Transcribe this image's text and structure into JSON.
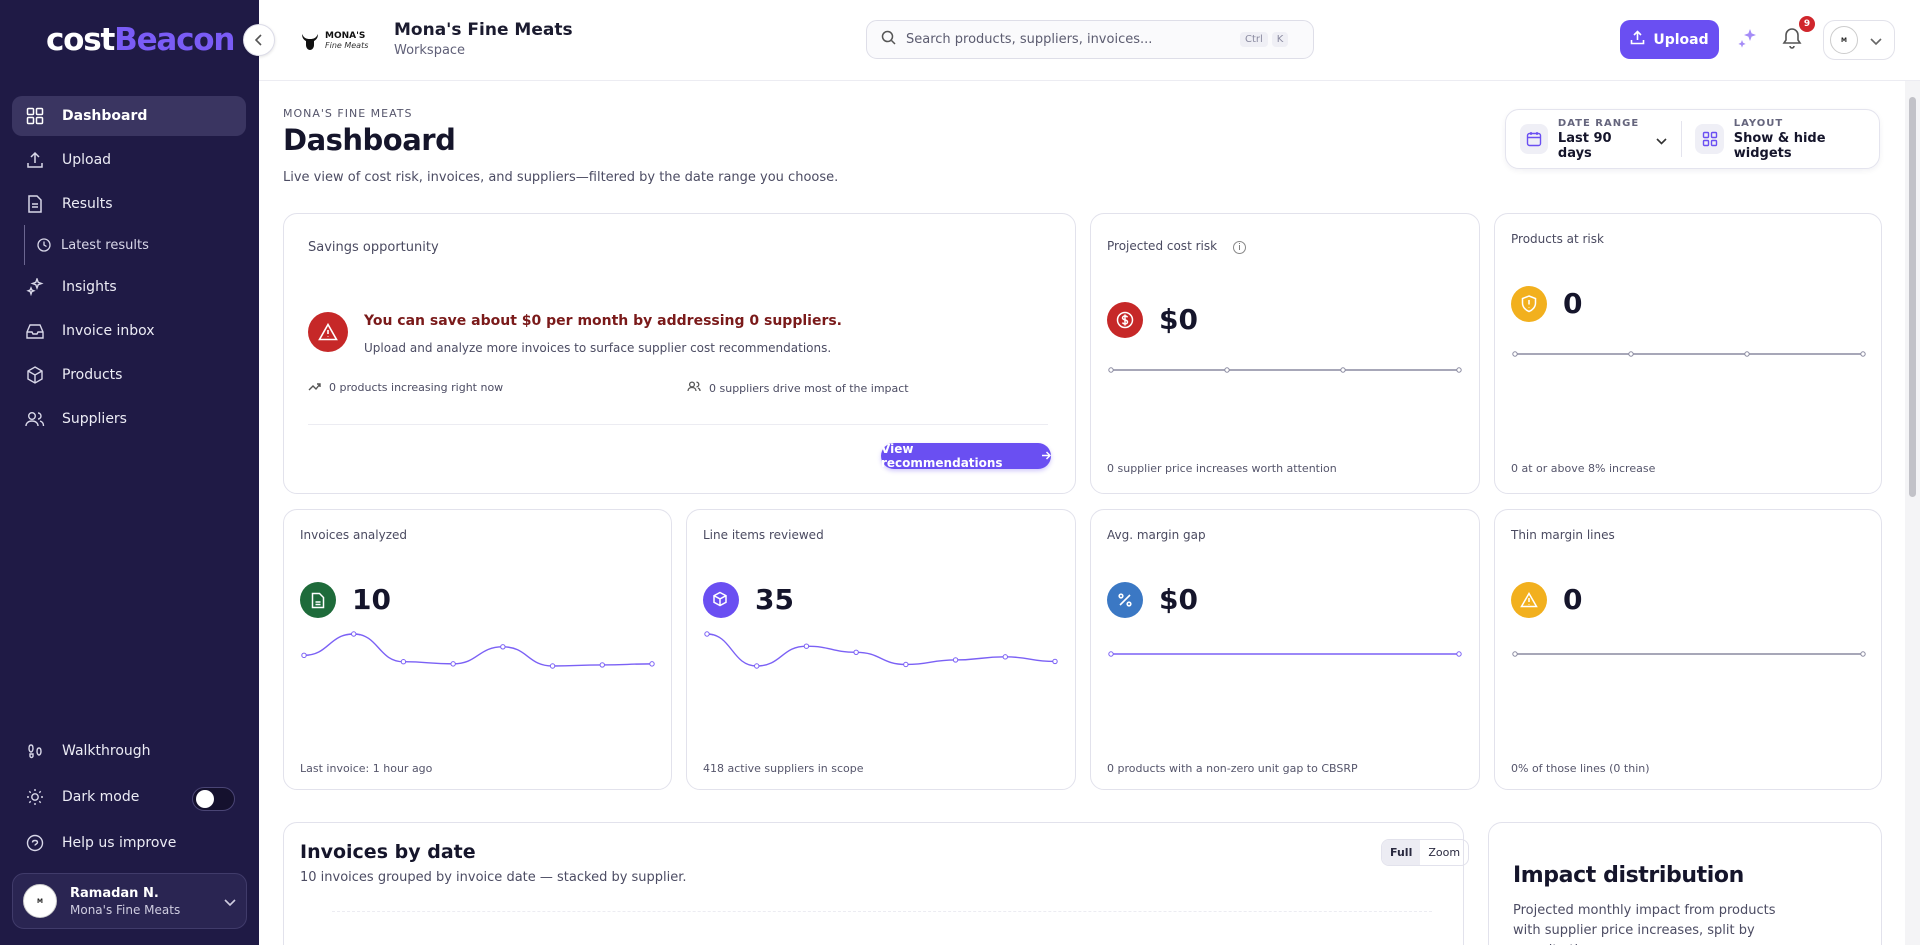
{
  "brand": {
    "logo_main": "cost",
    "logo_accent": "Beacon"
  },
  "sidebar": {
    "items": [
      {
        "label": "Dashboard",
        "icon": "grid-icon"
      },
      {
        "label": "Upload",
        "icon": "upload-icon"
      },
      {
        "label": "Results",
        "icon": "file-icon"
      },
      {
        "label": "Insights",
        "icon": "sparkle-icon"
      },
      {
        "label": "Invoice inbox",
        "icon": "inbox-icon"
      },
      {
        "label": "Products",
        "icon": "box-icon"
      },
      {
        "label": "Suppliers",
        "icon": "users-icon"
      }
    ],
    "sub_item": "Latest results",
    "walkthrough": "Walkthrough",
    "dark_mode": "Dark mode",
    "help": "Help us improve",
    "user": {
      "name": "Ramadan N.",
      "workspace": "Mona's Fine Meats"
    }
  },
  "topbar": {
    "workspace_logo_text": "MONA'S",
    "workspace_logo_sub": "Fine Meats",
    "workspace_name": "Mona's Fine Meats",
    "workspace_label": "Workspace",
    "search_placeholder": "Search products, suppliers, invoices...",
    "kbd_ctrl": "Ctrl",
    "kbd_k": "K",
    "upload_label": "Upload",
    "notifications_count": "9",
    "account_logo_text": "MONA'S"
  },
  "page": {
    "eyebrow": "MONA'S FINE MEATS",
    "title": "Dashboard",
    "subtitle": "Live view of cost risk, invoices, and suppliers—filtered by the date range you choose."
  },
  "controls": {
    "date_range_label": "DATE RANGE",
    "date_range_value": "Last 90 days",
    "layout_label": "LAYOUT",
    "layout_value": "Show & hide widgets"
  },
  "savings": {
    "title": "Savings opportunity",
    "message": "You can save about $0 per month by addressing 0 suppliers.",
    "sub": "Upload and analyze more invoices to surface supplier cost recommendations.",
    "stat_products": "0 products increasing right now",
    "stat_suppliers": "0 suppliers drive most of the impact",
    "button": "View recommendations"
  },
  "kpis": {
    "cost_risk": {
      "title": "Projected cost risk",
      "value": "$0",
      "foot": "0 supplier price increases worth attention",
      "color": "#c62828",
      "spark": [
        0,
        0,
        0,
        0
      ]
    },
    "products_risk": {
      "title": "Products at risk",
      "value": "0",
      "foot": "0 at or above 8% increase",
      "color": "#f2b01e",
      "spark": [
        0,
        0,
        0,
        0
      ]
    },
    "invoices": {
      "title": "Invoices analyzed",
      "value": "10",
      "foot": "Last invoice: 1 hour ago",
      "color": "#1e6b3a",
      "spark": [
        1,
        2,
        0.7,
        0.6,
        1.4,
        0.5,
        0.55,
        0.6
      ]
    },
    "line_items": {
      "title": "Line items reviewed",
      "value": "35",
      "foot": "418 active suppliers in scope",
      "color": "#6a4ff2",
      "spark": [
        3,
        0.9,
        2.2,
        1.8,
        1.0,
        1.3,
        1.5,
        1.2
      ]
    },
    "margin_gap": {
      "title": "Avg. margin gap",
      "value": "$0",
      "foot": "0 products with a non-zero unit gap to CBSRP",
      "color": "#3b78c4",
      "spark": [
        0,
        0
      ]
    },
    "thin_margin": {
      "title": "Thin margin lines",
      "value": "0",
      "foot": "0% of those lines (0 thin)",
      "color": "#f2b01e",
      "spark": [
        0,
        0
      ]
    }
  },
  "invoices_chart": {
    "title": "Invoices by date",
    "subtitle": "10 invoices grouped by invoice date — stacked by supplier.",
    "mode_full": "Full",
    "mode_zoom": "Zoom"
  },
  "impact": {
    "title": "Impact distribution",
    "subtitle": "Projected monthly impact from products with supplier price increases, split by severity tier."
  },
  "colors": {
    "sidebar_bg": "#1f1a45",
    "accent": "#6a4ff2",
    "danger": "#c62828"
  }
}
